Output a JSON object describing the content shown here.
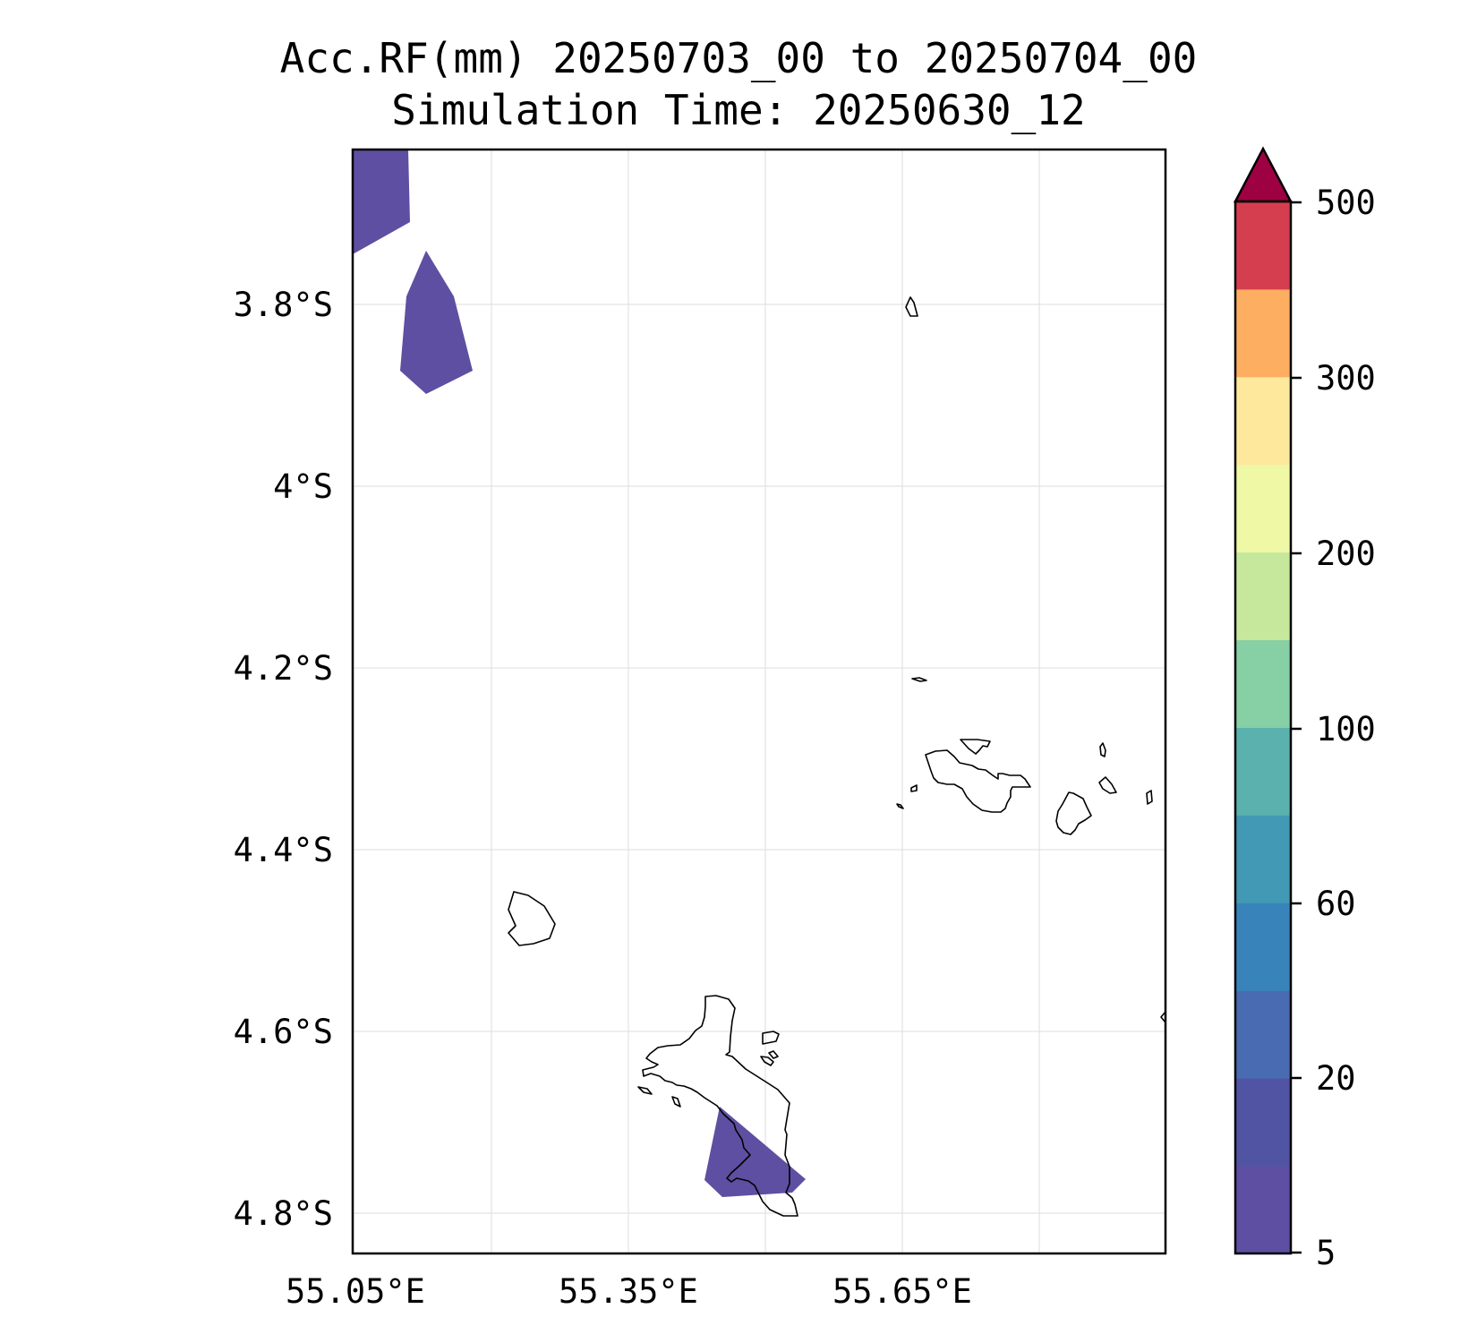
{
  "title": {
    "line1": "Acc.RF(mm) 20250703_00 to 20250704_00",
    "line2": "Simulation Time: 20250630_12"
  },
  "map": {
    "lat_labels": [
      "3.8°S",
      "4°S",
      "4.2°S",
      "4.4°S",
      "4.6°S",
      "4.8°S"
    ],
    "lon_labels": [
      "55.05°E",
      "55.35°E",
      "55.65°E"
    ],
    "gridlines": true
  },
  "rainfall_regions": {
    "fill_color": "#5e4fa2",
    "areas": [
      "northwest-corner",
      "northwest-patch",
      "south-mahe"
    ],
    "category": "5–10 mm"
  },
  "colorbar": {
    "tick_labels": [
      "5",
      "20",
      "60",
      "100",
      "200",
      "300",
      "500"
    ],
    "extend": "max",
    "colors": [
      "#5e4fa2",
      "#5154a3",
      "#486bb1",
      "#3884ba",
      "#4299b5",
      "#5bb1ad",
      "#87cfa4",
      "#c6e89d",
      "#eef8a5",
      "#fee89c",
      "#fdae61",
      "#d53e4f"
    ],
    "extend_color": "#9e0142"
  }
}
